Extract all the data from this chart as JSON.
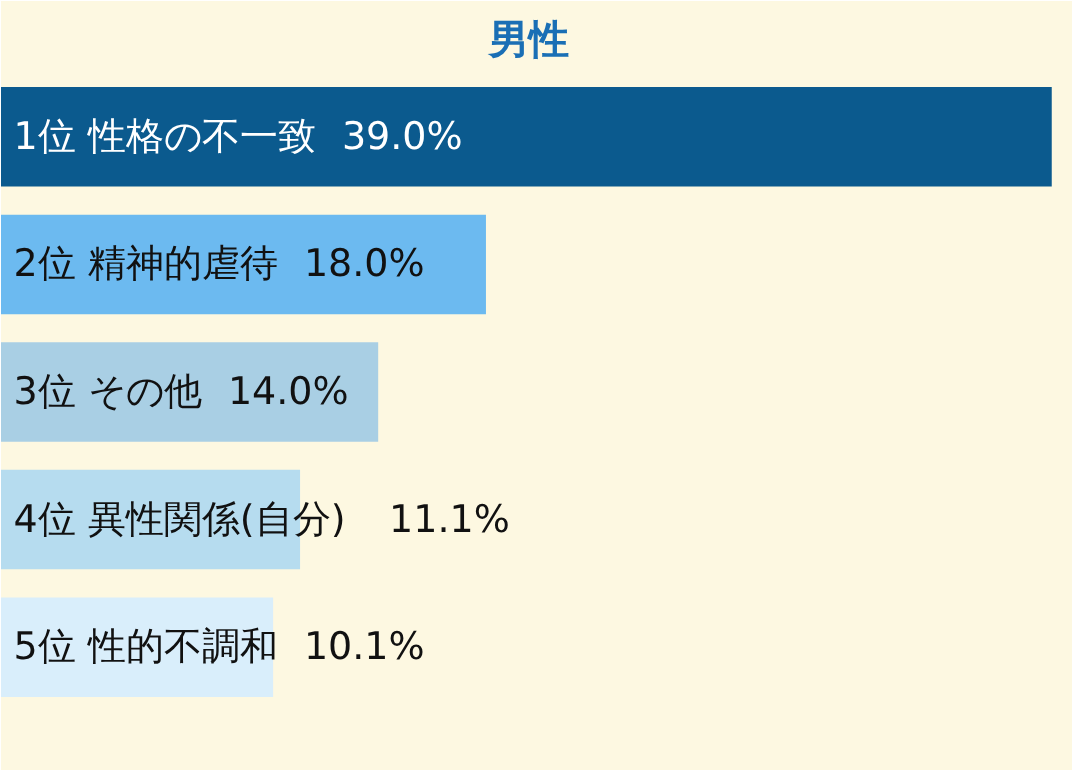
{
  "chart_data": {
    "type": "bar",
    "orientation": "horizontal",
    "title": "男性",
    "categories": [
      "1位 性格の不一致",
      "2位 精神的虐待",
      "3位 その他",
      "4位 異性関係(自分)",
      "5位 性的不調和"
    ],
    "values": [
      39.0,
      18.0,
      14.0,
      11.1,
      10.1
    ],
    "colors": [
      "#0b5a8e",
      "#6cbaf0",
      "#a9cfe4",
      "#b6dcef",
      "#d9eefb"
    ],
    "value_labels": [
      "39.0%",
      "18.0%",
      "14.0%",
      "11.1%",
      "10.1%"
    ],
    "data_labels": true,
    "grid": false
  }
}
